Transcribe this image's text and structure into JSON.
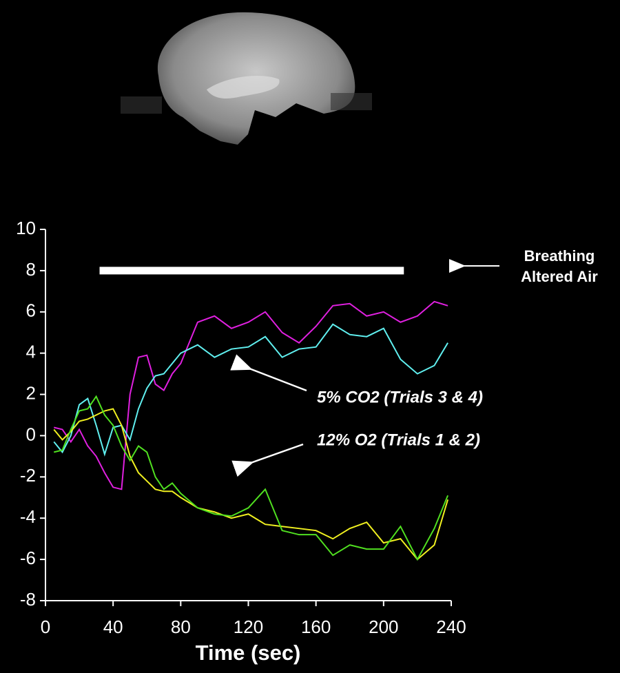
{
  "chart_data": {
    "type": "line",
    "xlabel": "Time (sec)",
    "x": [
      5,
      10,
      15,
      20,
      25,
      30,
      35,
      40,
      45,
      50,
      55,
      60,
      65,
      70,
      75,
      80,
      90,
      100,
      110,
      120,
      130,
      140,
      150,
      160,
      170,
      180,
      190,
      200,
      210,
      220,
      230,
      238
    ],
    "series": [
      {
        "color": "#e020e0",
        "values": [
          0.4,
          0.3,
          -0.3,
          0.3,
          -0.5,
          -1.0,
          -1.8,
          -2.5,
          -2.6,
          2.0,
          3.8,
          3.9,
          2.5,
          2.2,
          3.0,
          3.5,
          5.5,
          5.8,
          5.2,
          5.5,
          6.0,
          5.0,
          4.5,
          5.3,
          6.3,
          6.4,
          5.8,
          6.0,
          5.5,
          5.8,
          6.5,
          6.3
        ]
      },
      {
        "color": "#60f0f0",
        "values": [
          -0.3,
          -0.8,
          0.0,
          1.5,
          1.8,
          0.5,
          -0.9,
          0.4,
          0.5,
          -0.2,
          1.3,
          2.3,
          2.9,
          3.0,
          3.5,
          4.0,
          4.4,
          3.8,
          4.2,
          4.3,
          4.8,
          3.8,
          4.2,
          4.3,
          5.4,
          4.9,
          4.8,
          5.2,
          3.7,
          3.0,
          3.4,
          4.5
        ]
      },
      {
        "color": "#f0f020",
        "values": [
          0.3,
          -0.2,
          0.2,
          0.7,
          0.8,
          1.0,
          1.2,
          1.3,
          0.5,
          -1.0,
          -1.8,
          -2.2,
          -2.6,
          -2.7,
          -2.7,
          -3.0,
          -3.5,
          -3.7,
          -4.0,
          -3.8,
          -4.3,
          -4.4,
          -4.5,
          -4.6,
          -5.0,
          -4.5,
          -4.2,
          -5.2,
          -5.0,
          -6.0,
          -5.3,
          -3.1
        ]
      },
      {
        "color": "#50e020",
        "values": [
          -0.8,
          -0.7,
          0.3,
          1.2,
          1.3,
          1.9,
          1.0,
          0.5,
          -0.5,
          -1.2,
          -0.5,
          -0.8,
          -2.0,
          -2.6,
          -2.3,
          -2.8,
          -3.5,
          -3.8,
          -3.9,
          -3.5,
          -2.6,
          -4.6,
          -4.8,
          -4.8,
          -5.8,
          -5.3,
          -5.5,
          -5.5,
          -4.4,
          -6.0,
          -4.5,
          -2.9
        ]
      }
    ],
    "period": {
      "start": 32,
      "end": 212,
      "y": 8,
      "color": "#ffffff"
    },
    "annotations": {
      "breathing": [
        "Breathing",
        "Altered Air"
      ],
      "co2": "5% CO2 (Trials 3 & 4)",
      "o2": "12% O2 (Trials 1 & 2)"
    },
    "xlim": [
      0,
      240
    ],
    "xticks": [
      0,
      40,
      80,
      120,
      160,
      200,
      240
    ],
    "ylim": [
      -8,
      10
    ],
    "yticks": [
      -8,
      -6,
      -4,
      -2,
      0,
      2,
      4,
      6,
      8,
      10
    ]
  }
}
